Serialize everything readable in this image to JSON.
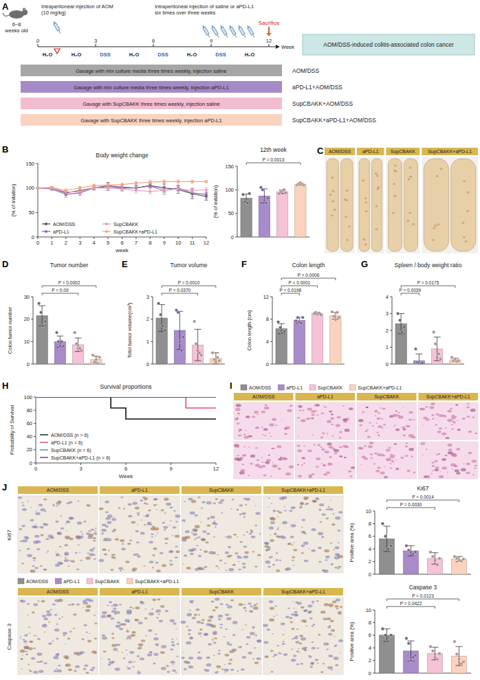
{
  "panel_labels": [
    "A",
    "B",
    "C",
    "D",
    "E",
    "F",
    "G",
    "H",
    "I",
    "J"
  ],
  "groups": [
    {
      "name": "AOM/DSS",
      "color": "#8f8f8f"
    },
    {
      "name": "aPD-L1",
      "color": "#a88bca"
    },
    {
      "name": "SupCBAKK",
      "color": "#f5c2d6"
    },
    {
      "name": "SupCBAKK+aPD-L1",
      "color": "#fad2bd"
    }
  ],
  "ihc_rows": [
    "Ki67",
    "Caspase 3"
  ],
  "diagram": {
    "mouse_label": "6~8 weeks old",
    "aom_injection": "Intraperitoneal injection of AOM (10 mg/kg)",
    "treatment_injection": "Intraperitoneal injection of saline or aPD-L1 six times over three weeks",
    "sacrifice": "Sacrifice",
    "timeline": {
      "unit": "Week",
      "range": [
        0,
        12
      ],
      "ticks": [
        0,
        3,
        6,
        9,
        12
      ],
      "aom_week": 1,
      "sacrifice_week": 12,
      "segments": [
        {
          "label": "H₂O",
          "week": 0.5,
          "color": "#222222"
        },
        {
          "label": "H₂O",
          "week": 2,
          "color": "#222222"
        },
        {
          "label": "DSS",
          "week": 3.5,
          "color": "#1f5fbf"
        },
        {
          "label": "H₂O",
          "week": 5,
          "color": "#222222"
        },
        {
          "label": "DSS",
          "week": 6.5,
          "color": "#1f5fbf"
        },
        {
          "label": "H₂O",
          "week": 8,
          "color": "#222222"
        },
        {
          "label": "DSS",
          "week": 9.5,
          "color": "#1f5fbf"
        },
        {
          "label": "H₂O",
          "week": 11,
          "color": "#222222"
        }
      ]
    },
    "model": "AOM/DSS-induced colitis-associated colon cancer",
    "groups": [
      {
        "treatment": "Gavage with mix culture media three times weekly, injection saline",
        "name": "AOM/DSS",
        "color": "#a6a6a6"
      },
      {
        "treatment": "Gavage with mix culture media three times weekly, injection aPD-L1",
        "name": "aPD-L1+AOM/DSS",
        "color": "#a48ac6"
      },
      {
        "treatment": "Gavage with SupCBAKK three times weekly, injection saline",
        "name": "SupCBAKK+AOM/DSS",
        "color": "#f3bcd1"
      },
      {
        "treatment": "Gavage with SupCBAKK three times weekly, injection aPD-L1",
        "name": "SupCBAKK+aPD-L1+AOM/DSS",
        "color": "#f9d3c0"
      }
    ]
  },
  "chart_data": [
    {
      "type": "line",
      "title": "Body weight change",
      "x_label": "week",
      "y_label": "(% of initation)",
      "x": [
        0,
        1,
        2,
        3,
        4,
        5,
        6,
        7,
        8,
        9,
        10,
        11,
        12
      ],
      "xlim": [
        0,
        12
      ],
      "xticks": [
        0,
        1,
        2,
        3,
        4,
        5,
        6,
        7,
        8,
        9,
        10,
        11,
        12
      ],
      "ylim": [
        0,
        150
      ],
      "yticks": [
        0,
        50,
        100,
        150
      ],
      "legend": "lower left",
      "marker": "circle",
      "series": [
        {
          "name": "AOM/DSS",
          "color": "#555555",
          "values": [
            100,
            100,
            90,
            95,
            100,
            103,
            100,
            100,
            105,
            100,
            97,
            88,
            83
          ],
          "errors": [
            0,
            3,
            5,
            6,
            4,
            8,
            6,
            5,
            4,
            8,
            8,
            10,
            8
          ]
        },
        {
          "name": "aPD-L1",
          "color": "#8e6cb8",
          "values": [
            100,
            98,
            87,
            90,
            100,
            105,
            102,
            100,
            104,
            95,
            100,
            90,
            87
          ],
          "errors": [
            0,
            3,
            6,
            5,
            4,
            6,
            5,
            5,
            4,
            8,
            6,
            8,
            9
          ]
        },
        {
          "name": "SupCBAKK",
          "color": "#e79bbf",
          "values": [
            100,
            100,
            92,
            92,
            100,
            100,
            98,
            95,
            93,
            95,
            98,
            95,
            96
          ],
          "errors": [
            0,
            2,
            4,
            4,
            3,
            4,
            4,
            5,
            5,
            4,
            5,
            5,
            5
          ]
        },
        {
          "name": "SupCBAKK+aPD-L1",
          "color": "#f3a57e",
          "values": [
            100,
            101,
            95,
            100,
            105,
            106,
            107,
            110,
            112,
            113,
            113,
            113,
            113
          ],
          "errors": [
            0,
            2,
            3,
            3,
            3,
            3,
            3,
            3,
            3,
            3,
            3,
            3,
            2
          ]
        }
      ]
    },
    {
      "type": "bar",
      "title": "12th week",
      "y_label": "(% of initation)",
      "categories": [
        null,
        null,
        null,
        null
      ],
      "values": [
        82,
        87,
        96,
        112
      ],
      "errors": [
        9,
        15,
        4,
        2
      ],
      "points": [
        [
          90,
          75,
          72,
          92
        ],
        [
          105,
          100,
          78,
          72,
          82
        ],
        [
          92,
          96,
          98,
          100,
          94
        ],
        [
          110,
          113,
          115,
          112,
          110
        ]
      ],
      "colors": [
        "#8f8f8f",
        "#a88bca",
        "#f5c2d6",
        "#fad2bd"
      ],
      "ylim": [
        0,
        150
      ],
      "yticks": [
        0,
        50,
        100,
        150
      ],
      "annotations": [
        {
          "text": "P = 0.0013",
          "from": 0,
          "to": 3
        }
      ]
    },
    {
      "type": "bar",
      "title": "Tumor number",
      "y_label": "Colon tumor number",
      "categories": [
        null,
        null,
        null,
        null
      ],
      "values": [
        21.5,
        10,
        8.6,
        2
      ],
      "errors": [
        4.5,
        2.5,
        3,
        1.5
      ],
      "points": [
        [
          27,
          23,
          17,
          19
        ],
        [
          14,
          10,
          8,
          10,
          8
        ],
        [
          14,
          9,
          7,
          7,
          6
        ],
        [
          4,
          1,
          2,
          0,
          3
        ]
      ],
      "colors": [
        "#8f8f8f",
        "#a88bca",
        "#f5c2d6",
        "#fad2bd"
      ],
      "ylim": [
        0,
        30
      ],
      "yticks": [
        0,
        10,
        20,
        30
      ],
      "annotations": [
        {
          "text": "P = 0.09",
          "from": 0,
          "to": 2
        },
        {
          "text": "P = 0.0002",
          "from": 0,
          "to": 3
        }
      ]
    },
    {
      "type": "bar",
      "title": "Tumor volume",
      "y_label": "Totol tumor volume(cm³)",
      "categories": [
        null,
        null,
        null,
        null
      ],
      "values": [
        2.05,
        1.5,
        0.85,
        0.25
      ],
      "errors": [
        0.6,
        0.85,
        0.7,
        0.25
      ],
      "points": [
        [
          2.7,
          2.2,
          1.7,
          1.5
        ],
        [
          2.4,
          2.3,
          1.0,
          0.6,
          1.2
        ],
        [
          1.9,
          0.9,
          0.6,
          0.5,
          0.4
        ],
        [
          0.5,
          0.2,
          0.1,
          0.3,
          0.15
        ]
      ],
      "colors": [
        "#8f8f8f",
        "#a88bca",
        "#f5c2d6",
        "#fad2bd"
      ],
      "ylim": [
        0,
        3
      ],
      "yticks": [
        0,
        1,
        2,
        3
      ],
      "annotations": [
        {
          "text": "P = 0.0370",
          "from": 0,
          "to": 2
        },
        {
          "text": "P = 0.0010",
          "from": 0,
          "to": 3
        }
      ]
    },
    {
      "type": "bar",
      "title": "Colon length",
      "y_label": "Colon length (cm)",
      "categories": [
        null,
        null,
        null,
        null
      ],
      "values": [
        6.3,
        7.8,
        9,
        8.6
      ],
      "errors": [
        0.9,
        0.5,
        0.2,
        0.6
      ],
      "points": [
        [
          7.5,
          6.5,
          5.5,
          5.8
        ],
        [
          7.7,
          8.3,
          7.5,
          7.3,
          8.3
        ],
        [
          9,
          9.2,
          8.9,
          9.1,
          8.8
        ],
        [
          9.3,
          8.5,
          7.9,
          9.2,
          8.3
        ]
      ],
      "colors": [
        "#8f8f8f",
        "#a88bca",
        "#f5c2d6",
        "#fad2bd"
      ],
      "ylim": [
        0,
        12
      ],
      "yticks": [
        0,
        4,
        8,
        12
      ],
      "annotations": [
        {
          "text": "P = 0.0198",
          "from": 0,
          "to": 1
        },
        {
          "text": "P < 0.0001",
          "from": 0,
          "to": 2
        },
        {
          "text": "P = 0.0006",
          "from": 0,
          "to": 3
        }
      ]
    },
    {
      "type": "bar",
      "title": "Spleen / body weight ratio",
      "categories": [
        null,
        null,
        null,
        null
      ],
      "values": [
        2.4,
        0.2,
        0.9,
        0.25
      ],
      "errors": [
        0.6,
        0.4,
        0.7,
        0.1
      ],
      "points": [
        [
          3.0,
          2.6,
          1.9,
          2.2
        ],
        [
          0.9,
          0.1,
          0.05,
          0.02,
          0.05
        ],
        [
          1.9,
          1.2,
          0.4,
          0.6,
          0.3
        ],
        [
          0.4,
          0.2,
          0.3,
          0.15,
          0.2
        ]
      ],
      "colors": [
        "#8f8f8f",
        "#a88bca",
        "#f5c2d6",
        "#fad2bd"
      ],
      "ylim": [
        0,
        4
      ],
      "yticks": [
        0,
        1,
        2,
        3,
        4
      ],
      "annotations": [
        {
          "text": "P = 0.0039",
          "from": 0,
          "to": 1
        },
        {
          "text": "P = 0.0175",
          "from": 0,
          "to": 3
        }
      ]
    },
    {
      "type": "line",
      "line_style": "step",
      "title": "Survival proportions",
      "x_label": "Week",
      "y_label": "Probability of Survival",
      "x": [
        0,
        5,
        6,
        10,
        12
      ],
      "xlim": [
        0,
        12
      ],
      "xticks": [
        0,
        3,
        6,
        9,
        12
      ],
      "ylim": [
        0,
        100
      ],
      "yticks": [
        0,
        20,
        40,
        60,
        80,
        100
      ],
      "legend": "lower left",
      "series": [
        {
          "name": "AOM/DSS (n = 6)",
          "color": "#111111",
          "values": [
            100,
            83.3,
            66.7,
            66.7,
            66.7
          ]
        },
        {
          "name": "aPD-L1 (n = 6)",
          "color": "#e8457a",
          "values": [
            100,
            100,
            100,
            83.3,
            83.3
          ]
        },
        {
          "name": "SupCBAKK (n = 6)",
          "color": "#1fa39a",
          "values": [
            100,
            100,
            100,
            100,
            100
          ]
        },
        {
          "name": "SupCBAKK+aPD-L1 (n = 6)",
          "color": "#6a2c91",
          "values": [
            100,
            100,
            100,
            100,
            100
          ]
        }
      ]
    },
    {
      "type": "bar",
      "title": "Ki67",
      "y_label": "Positive area (%)",
      "categories": [
        null,
        null,
        null,
        null
      ],
      "values": [
        5.6,
        3.7,
        2.5,
        2.4
      ],
      "errors": [
        2.0,
        0.8,
        0.9,
        0.4
      ],
      "points": [
        [
          8,
          6,
          4,
          4.5
        ],
        [
          4.5,
          3.8,
          3.5,
          3.2,
          3.5
        ],
        [
          3.5,
          2.8,
          2.2,
          1.5,
          2.5
        ],
        [
          2.8,
          2.5,
          2.2,
          2.1,
          2.4
        ]
      ],
      "colors": [
        "#8f8f8f",
        "#a88bca",
        "#f5c2d6",
        "#fad2bd"
      ],
      "ylim": [
        0,
        10
      ],
      "yticks": [
        0,
        2,
        4,
        6,
        8,
        10
      ],
      "annotations": [
        {
          "text": "P = 0.0030",
          "from": 0,
          "to": 2
        },
        {
          "text": "P = 0.0014",
          "from": 0,
          "to": 3
        }
      ]
    },
    {
      "type": "bar",
      "title": "Caspase 3",
      "y_label": "Positive area (%)",
      "categories": [
        null,
        null,
        null,
        null
      ],
      "values": [
        6,
        3.5,
        3.1,
        2.7
      ],
      "errors": [
        1.0,
        1.6,
        1.0,
        1.5
      ],
      "points": [
        [
          7,
          6,
          5,
          6
        ],
        [
          5.5,
          4.7,
          2,
          2.5,
          2.8
        ],
        [
          4.2,
          3.5,
          2.5,
          2.2,
          3.1
        ],
        [
          5,
          3,
          2.2,
          1.5,
          1.8
        ]
      ],
      "colors": [
        "#8f8f8f",
        "#a88bca",
        "#f5c2d6",
        "#fad2bd"
      ],
      "ylim": [
        0,
        10
      ],
      "yticks": [
        0,
        2,
        4,
        6,
        8,
        10
      ],
      "annotations": [
        {
          "text": "P = 0.0422",
          "from": 0,
          "to": 2
        },
        {
          "text": "P = 0.0123",
          "from": 0,
          "to": 3
        }
      ]
    }
  ]
}
